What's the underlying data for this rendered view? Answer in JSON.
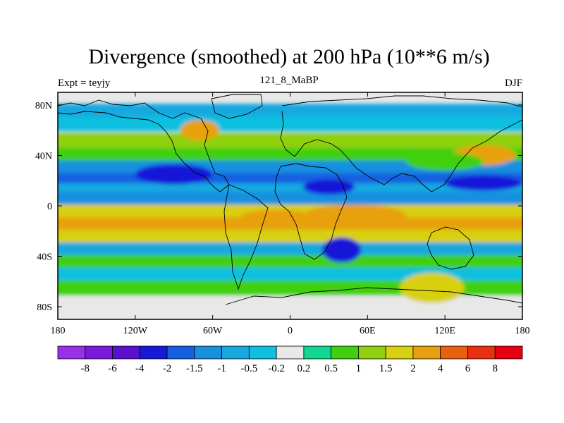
{
  "chart_data": {
    "type": "heatmap",
    "title": "Divergence (smoothed) at 200 hPa (10**6 m/s)",
    "left_label": "Expt = teyjy",
    "center_label": "121_8_MaBP",
    "right_label": "DJF",
    "x_ticks": [
      {
        "value": -180,
        "label": "180"
      },
      {
        "value": -120,
        "label": "120W"
      },
      {
        "value": -60,
        "label": "60W"
      },
      {
        "value": 0,
        "label": "0"
      },
      {
        "value": 60,
        "label": "60E"
      },
      {
        "value": 120,
        "label": "120E"
      },
      {
        "value": 180,
        "label": "180"
      }
    ],
    "y_ticks": [
      {
        "value": 80,
        "label": "80N"
      },
      {
        "value": 40,
        "label": "40N"
      },
      {
        "value": 0,
        "label": "0"
      },
      {
        "value": -40,
        "label": "40S"
      },
      {
        "value": -80,
        "label": "80S"
      }
    ],
    "xlim": [
      -180,
      180
    ],
    "ylim": [
      -90,
      90
    ],
    "colorbar": {
      "levels": [
        "-8",
        "-6",
        "-4",
        "-2",
        "-1.5",
        "-1",
        "-0.5",
        "-0.2",
        "0.2",
        "0.5",
        "1",
        "1.5",
        "2",
        "4",
        "6",
        "8"
      ],
      "colors": [
        "#9a30e8",
        "#7a1bdc",
        "#5a10cc",
        "#1818d8",
        "#1460e0",
        "#1890e0",
        "#18a8e0",
        "#10c0e0",
        "#e8e8e8",
        "#10d890",
        "#40d010",
        "#90d010",
        "#d8d010",
        "#e8a010",
        "#e86010",
        "#e83010",
        "#e80010"
      ]
    },
    "bands": [
      {
        "lat": 75,
        "value": -0.8
      },
      {
        "lat": 65,
        "value": -0.4
      },
      {
        "lat": 52,
        "value": 1.2
      },
      {
        "lat": 40,
        "value": 0.8
      },
      {
        "lat": 30,
        "value": -1.5
      },
      {
        "lat": 20,
        "value": -1.8
      },
      {
        "lat": 12,
        "value": -0.6
      },
      {
        "lat": 5,
        "value": -1.2
      },
      {
        "lat": -5,
        "value": 1.5
      },
      {
        "lat": -15,
        "value": 3.0
      },
      {
        "lat": -25,
        "value": 1.5
      },
      {
        "lat": -35,
        "value": -0.6
      },
      {
        "lat": -45,
        "value": 0.6
      },
      {
        "lat": -55,
        "value": -0.5
      },
      {
        "lat": -65,
        "value": 0.6
      },
      {
        "lat": -78,
        "value": 0.0
      }
    ],
    "blobs": [
      {
        "lon": -70,
        "lat": 60,
        "rx": 15,
        "ry": 8,
        "value": 2.5
      },
      {
        "lon": 150,
        "lat": 40,
        "rx": 25,
        "ry": 8,
        "value": 2.5
      },
      {
        "lon": 120,
        "lat": 35,
        "rx": 30,
        "ry": 7,
        "value": 0.8
      },
      {
        "lon": -90,
        "lat": 25,
        "rx": 30,
        "ry": 8,
        "value": -3.0
      },
      {
        "lon": 150,
        "lat": 18,
        "rx": 30,
        "ry": 6,
        "value": -2.5
      },
      {
        "lon": 30,
        "lat": 15,
        "rx": 20,
        "ry": 6,
        "value": -2.5
      },
      {
        "lon": 50,
        "lat": -8,
        "rx": 40,
        "ry": 9,
        "value": 3.5
      },
      {
        "lon": 40,
        "lat": -35,
        "rx": 15,
        "ry": 10,
        "value": -3.0
      },
      {
        "lon": 110,
        "lat": -65,
        "rx": 25,
        "ry": 12,
        "value": 1.8
      },
      {
        "lon": -10,
        "lat": -10,
        "rx": 30,
        "ry": 7,
        "value": 2.0
      }
    ]
  }
}
